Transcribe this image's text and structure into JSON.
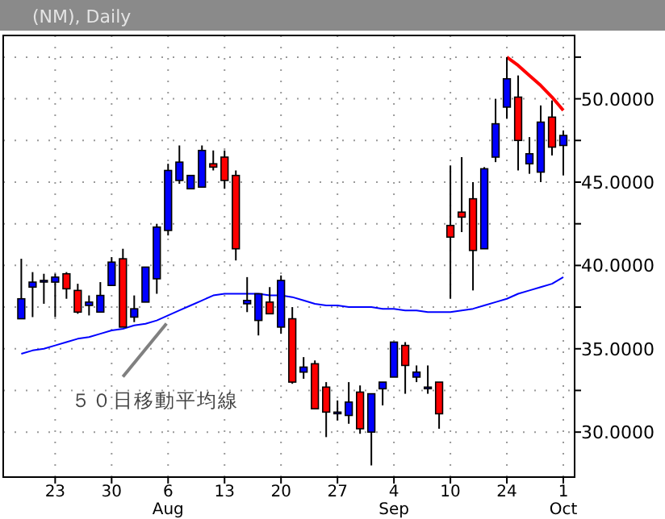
{
  "chart_data": {
    "type": "candlestick",
    "title": "(NM), Daily",
    "categories": [
      null,
      null,
      null,
      "23",
      null,
      null,
      null,
      null,
      "30",
      null,
      null,
      null,
      null,
      "6\nAug",
      null,
      null,
      null,
      null,
      "13",
      null,
      null,
      null,
      null,
      "20",
      null,
      null,
      null,
      null,
      "27",
      null,
      null,
      null,
      null,
      "4\nSep",
      null,
      null,
      null,
      null,
      "10",
      null,
      null,
      null,
      null,
      "24",
      null,
      null,
      null,
      null,
      "1\nOct"
    ],
    "ohlc": [
      [
        36.8,
        40.4,
        36.8,
        38.0
      ],
      [
        38.7,
        39.6,
        36.9,
        39.0
      ],
      [
        39.1,
        39.5,
        37.7,
        39.1
      ],
      [
        39.0,
        39.5,
        36.9,
        39.3
      ],
      [
        39.5,
        39.6,
        38.0,
        38.6
      ],
      [
        38.5,
        38.9,
        37.1,
        37.2
      ],
      [
        37.6,
        38.2,
        37.0,
        37.8
      ],
      [
        37.2,
        39.0,
        37.2,
        38.2
      ],
      [
        38.8,
        40.5,
        38.8,
        40.2
      ],
      [
        40.4,
        41.0,
        36.3,
        36.3
      ],
      [
        36.9,
        38.2,
        36.6,
        37.4
      ],
      [
        37.8,
        39.9,
        37.8,
        39.9
      ],
      [
        39.2,
        42.5,
        38.3,
        42.3
      ],
      [
        42.1,
        46.1,
        41.8,
        45.7
      ],
      [
        45.1,
        47.2,
        44.9,
        46.2
      ],
      [
        44.6,
        45.4,
        44.6,
        45.4
      ],
      [
        44.7,
        47.2,
        44.7,
        46.9
      ],
      [
        46.1,
        46.9,
        45.7,
        45.9
      ],
      [
        46.5,
        46.9,
        44.6,
        45.1
      ],
      [
        45.4,
        45.7,
        40.3,
        41.0
      ],
      [
        37.7,
        39.3,
        37.2,
        37.9
      ],
      [
        36.7,
        38.3,
        35.8,
        38.3
      ],
      [
        37.8,
        38.7,
        37.1,
        37.1
      ],
      [
        36.3,
        39.4,
        35.9,
        39.1
      ],
      [
        36.8,
        37.5,
        32.9,
        33.0
      ],
      [
        33.6,
        34.5,
        33.2,
        33.9
      ],
      [
        34.1,
        34.3,
        31.4,
        31.4
      ],
      [
        32.7,
        33.0,
        29.7,
        31.2
      ],
      [
        31.2,
        31.9,
        30.7,
        31.2
      ],
      [
        31.0,
        33.0,
        30.5,
        31.8
      ],
      [
        32.4,
        32.8,
        29.9,
        30.2
      ],
      [
        30.0,
        32.3,
        28.0,
        32.3
      ],
      [
        32.6,
        33.0,
        31.6,
        33.0
      ],
      [
        33.3,
        35.4,
        33.3,
        35.4
      ],
      [
        35.2,
        35.4,
        32.3,
        34.0
      ],
      [
        33.3,
        34.0,
        33.0,
        33.6
      ],
      [
        32.7,
        34.0,
        32.3,
        32.7
      ],
      [
        33.0,
        33.0,
        30.2,
        31.1
      ],
      [
        42.4,
        46.0,
        38.0,
        41.7
      ],
      [
        43.2,
        46.5,
        42.0,
        42.9
      ],
      [
        44.0,
        45.0,
        38.5,
        40.9
      ],
      [
        41.0,
        45.9,
        41.0,
        45.8
      ],
      [
        46.5,
        50.0,
        46.2,
        48.5
      ],
      [
        49.5,
        52.5,
        48.8,
        51.2
      ],
      [
        50.1,
        51.4,
        45.7,
        47.5
      ],
      [
        46.1,
        47.7,
        45.5,
        46.7
      ],
      [
        45.6,
        49.6,
        45.0,
        48.6
      ],
      [
        48.9,
        49.9,
        46.6,
        47.1
      ],
      [
        47.2,
        48.1,
        45.4,
        47.8
      ]
    ],
    "colors": [
      "#0000ff",
      "#0000ff",
      "#0000ff",
      "#0000ff",
      "#ff0000",
      "#ff0000",
      "#0000ff",
      "#0000ff",
      "#0000ff",
      "#ff0000",
      "#0000ff",
      "#0000ff",
      "#0000ff",
      "#0000ff",
      "#0000ff",
      "#0000ff",
      "#0000ff",
      "#ff0000",
      "#ff0000",
      "#ff0000",
      "#0000ff",
      "#0000ff",
      "#ff0000",
      "#0000ff",
      "#ff0000",
      "#0000ff",
      "#ff0000",
      "#ff0000",
      "#0000ff",
      "#0000ff",
      "#ff0000",
      "#0000ff",
      "#0000ff",
      "#0000ff",
      "#ff0000",
      "#0000ff",
      "#0000ff",
      "#ff0000",
      "#ff0000",
      "#ff0000",
      "#ff0000",
      "#0000ff",
      "#0000ff",
      "#0000ff",
      "#ff0000",
      "#0000ff",
      "#0000ff",
      "#ff0000",
      "#0000ff"
    ],
    "series": [
      {
        "type": "line",
        "color": "#0000ff",
        "values": [
          34.7,
          34.9,
          35.0,
          35.2,
          35.4,
          35.6,
          35.7,
          35.9,
          36.1,
          36.2,
          36.4,
          36.5,
          36.7,
          37.0,
          37.3,
          37.6,
          37.9,
          38.2,
          38.3,
          38.3,
          38.3,
          38.3,
          38.2,
          38.2,
          38.1,
          37.9,
          37.7,
          37.6,
          37.6,
          37.5,
          37.5,
          37.5,
          37.4,
          37.4,
          37.3,
          37.3,
          37.2,
          37.2,
          37.2,
          37.3,
          37.4,
          37.6,
          37.8,
          38.0,
          38.3,
          38.5,
          38.7,
          38.9,
          39.3
        ]
      },
      {
        "type": "line",
        "color": "#ff0000",
        "values": [
          null,
          null,
          null,
          null,
          null,
          null,
          null,
          null,
          null,
          null,
          null,
          null,
          null,
          null,
          null,
          null,
          null,
          null,
          null,
          null,
          null,
          null,
          null,
          null,
          null,
          null,
          null,
          null,
          null,
          null,
          null,
          null,
          null,
          null,
          null,
          null,
          null,
          null,
          null,
          null,
          null,
          null,
          null,
          52.5,
          52.0,
          51.4,
          50.8,
          50.1,
          49.3
        ]
      }
    ],
    "annotations": [
      {
        "text": "５０日移動平均線",
        "x": "6\nAug",
        "y": 37.0
      }
    ],
    "ylim": [
      27.3,
      53.8
    ],
    "yticks": [
      {
        "value": 30,
        "label": "30.0000"
      },
      {
        "value": 32.5,
        "label": null
      },
      {
        "value": 35,
        "label": "35.0000"
      },
      {
        "value": 37.5,
        "label": null
      },
      {
        "value": 40,
        "label": "40.0000"
      },
      {
        "value": 42.5,
        "label": null
      },
      {
        "value": 45,
        "label": "45.0000"
      },
      {
        "value": 47.5,
        "label": null
      },
      {
        "value": 50,
        "label": "50.0000"
      },
      {
        "value": 52.5,
        "label": null
      }
    ],
    "grid": true
  }
}
